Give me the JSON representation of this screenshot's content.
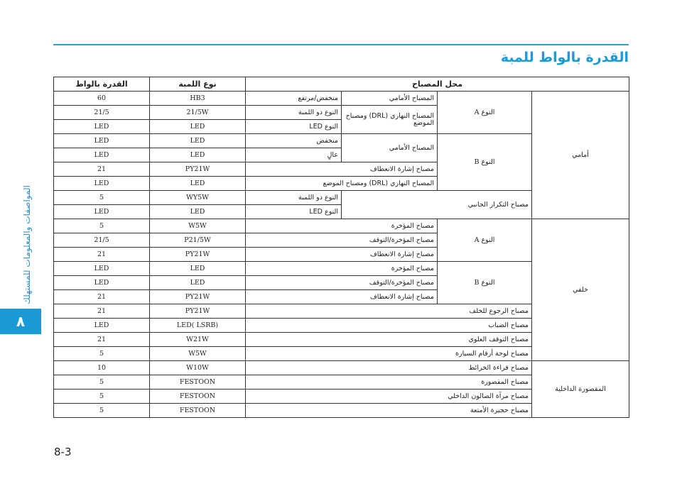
{
  "header": {
    "title": "القدرة بالواط للمبة"
  },
  "sidebar": {
    "section": "المواصفات والمعلومات للمستهلك",
    "chapter": "٨"
  },
  "table": {
    "headers": [
      "محل المصباح",
      "نوع اللمبة",
      "القدرة بالواط"
    ],
    "rows": [
      [
        "أمامي",
        "النوع A",
        "المصباح الأمامي",
        "منخفض/مرتفع",
        "HB3",
        "60"
      ],
      [
        "المصباح النهاري (DRL) ومصباح الموضع",
        "النوع ذو اللمبة",
        "21/5W",
        "21/5"
      ],
      [
        "النوع LED",
        "LED",
        "LED"
      ],
      [
        "النوع B",
        "المصباح الأمامي",
        "منخفض",
        "LED",
        "LED"
      ],
      [
        "عالٍ",
        "LED",
        "LED"
      ],
      [
        "مصباح إشارة الانعطاف",
        "PY21W",
        "21"
      ],
      [
        "المصباح النهاري (DRL) ومصباح الموضع",
        "LED",
        "LED"
      ],
      [
        "مصباح التكرار الجانبي",
        "النوع ذو اللمبة",
        "WY5W",
        "5"
      ],
      [
        "النوع LED",
        "LED",
        "LED"
      ],
      [
        "خلفي",
        "النوع A",
        "مصباح المؤخرة",
        "W5W",
        "5"
      ],
      [
        "مصباح المؤخرة/التوقف",
        "P21/5W",
        "21/5"
      ],
      [
        "مصباح إشارة الانعطاف",
        "PY21W",
        "21"
      ],
      [
        "النوع B",
        "مصباح المؤخرة",
        "LED",
        "LED"
      ],
      [
        "مصباح المؤخرة/التوقف",
        "LED",
        "LED"
      ],
      [
        "مصباح إشارة الانعطاف",
        "PY21W",
        "21"
      ],
      [
        "مصباح الرجوع للخلف",
        "PY21W",
        "21"
      ],
      [
        "مصباح الضباب",
        "LED( LSRB)",
        "LED"
      ],
      [
        "مصباح التوقف العلوي",
        "W21W",
        "21"
      ],
      [
        "مصباح لوحة أرقام السيارة",
        "W5W",
        "5"
      ],
      [
        "المقصورة الداخلية",
        "مصباح قراءة الخرائط",
        "W10W",
        "10"
      ],
      [
        "مصباح المقصورة",
        "FESTOON",
        "5"
      ],
      [
        "مصباح مرآة الصالون الداخلي",
        "FESTOON",
        "5"
      ],
      [
        "مصباح حجيرة الأمتعة",
        "FESTOON",
        "5"
      ]
    ]
  },
  "footer": {
    "page": "8-3"
  }
}
